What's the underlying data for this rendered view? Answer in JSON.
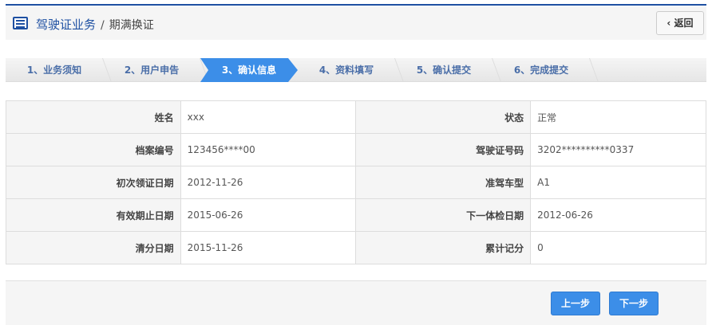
{
  "header": {
    "title": "驾驶证业务",
    "separator": "/",
    "subtitle": "期满换证",
    "back_label": "返回",
    "icon": "list-icon"
  },
  "steps": [
    {
      "label": "1、业务须知"
    },
    {
      "label": "2、用户申告"
    },
    {
      "label": "3、确认信息",
      "active": true
    },
    {
      "label": "4、资料填写"
    },
    {
      "label": "5、确认提交"
    },
    {
      "label": "6、完成提交"
    }
  ],
  "info": [
    [
      {
        "label": "姓名",
        "value": "xxx"
      },
      {
        "label": "状态",
        "value": "正常"
      }
    ],
    [
      {
        "label": "档案编号",
        "value": "123456****00"
      },
      {
        "label": "驾驶证号码",
        "value": "3202**********0337"
      }
    ],
    [
      {
        "label": "初次领证日期",
        "value": "2012-11-26"
      },
      {
        "label": "准驾车型",
        "value": "A1"
      }
    ],
    [
      {
        "label": "有效期止日期",
        "value": "2015-06-26"
      },
      {
        "label": "下一体检日期",
        "value": "2012-06-26"
      }
    ],
    [
      {
        "label": "清分日期",
        "value": "2015-11-26"
      },
      {
        "label": "累计记分",
        "value": "0"
      }
    ]
  ],
  "footer": {
    "prev_label": "上一步",
    "next_label": "下一步"
  },
  "colors": {
    "brand": "#1e50a2",
    "accent": "#3c8ee8"
  }
}
